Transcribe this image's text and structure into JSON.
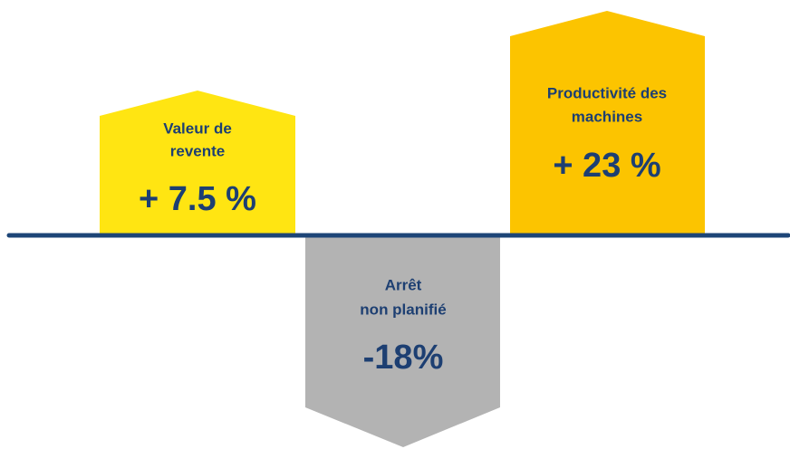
{
  "items": [
    {
      "label": [
        "Valeur de",
        "revente"
      ],
      "value": "+ 7.5 %"
    },
    {
      "label": [
        "Arrêt",
        "non planifié"
      ],
      "value": "-18%"
    },
    {
      "label": [
        "Productivité des",
        "machines"
      ],
      "value": "+ 23 %"
    }
  ]
}
